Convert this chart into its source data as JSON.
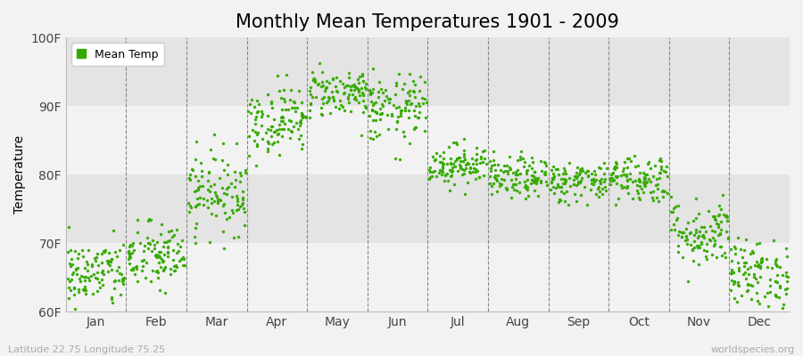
{
  "title": "Monthly Mean Temperatures 1901 - 2009",
  "ylabel": "Temperature",
  "xlabel_labels": [
    "Jan",
    "Feb",
    "Mar",
    "Apr",
    "May",
    "Jun",
    "Jul",
    "Aug",
    "Sep",
    "Oct",
    "Nov",
    "Dec"
  ],
  "ytick_labels": [
    "60F",
    "70F",
    "80F",
    "90F",
    "100F"
  ],
  "ytick_values": [
    60,
    70,
    80,
    90,
    100
  ],
  "ylim": [
    60,
    100
  ],
  "footer_left": "Latitude 22.75 Longitude 75.25",
  "footer_right": "worldspecies.org",
  "dot_color": "#33aa00",
  "legend_label": "Mean Temp",
  "bg_color": "#f2f2f2",
  "band_light": "#f2f2f2",
  "band_dark": "#e4e4e4",
  "title_fontsize": 15,
  "axis_fontsize": 10,
  "tick_fontsize": 10,
  "monthly_means": [
    65.5,
    68.0,
    77.5,
    88.0,
    92.0,
    89.5,
    81.5,
    79.5,
    79.0,
    79.5,
    71.5,
    65.5
  ],
  "monthly_stds": [
    2.5,
    2.5,
    3.0,
    2.5,
    1.8,
    2.5,
    1.5,
    1.5,
    1.5,
    1.8,
    2.5,
    2.5
  ],
  "n_years": 109,
  "seed": 42
}
